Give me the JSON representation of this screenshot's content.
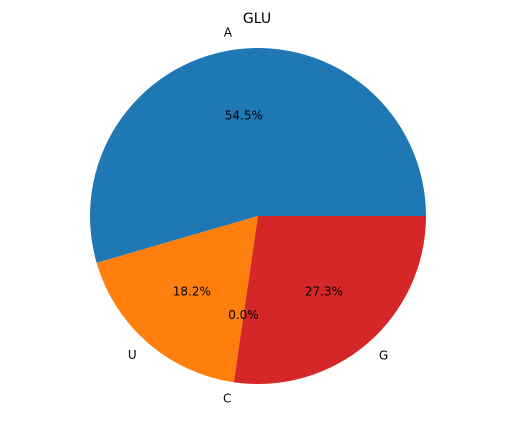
{
  "chart_data": {
    "type": "pie",
    "title": "GLU",
    "categories": [
      "A",
      "U",
      "C",
      "G"
    ],
    "values": [
      54.5,
      18.2,
      0.0,
      27.3
    ],
    "value_labels": [
      "54.5%",
      "18.2%",
      "0.0%",
      "27.3%"
    ],
    "colors": [
      "#1f77b4",
      "#ff7f0e",
      "#2ca02c",
      "#d62728"
    ],
    "start_angle_deg": 0,
    "direction": "counterclockwise"
  }
}
